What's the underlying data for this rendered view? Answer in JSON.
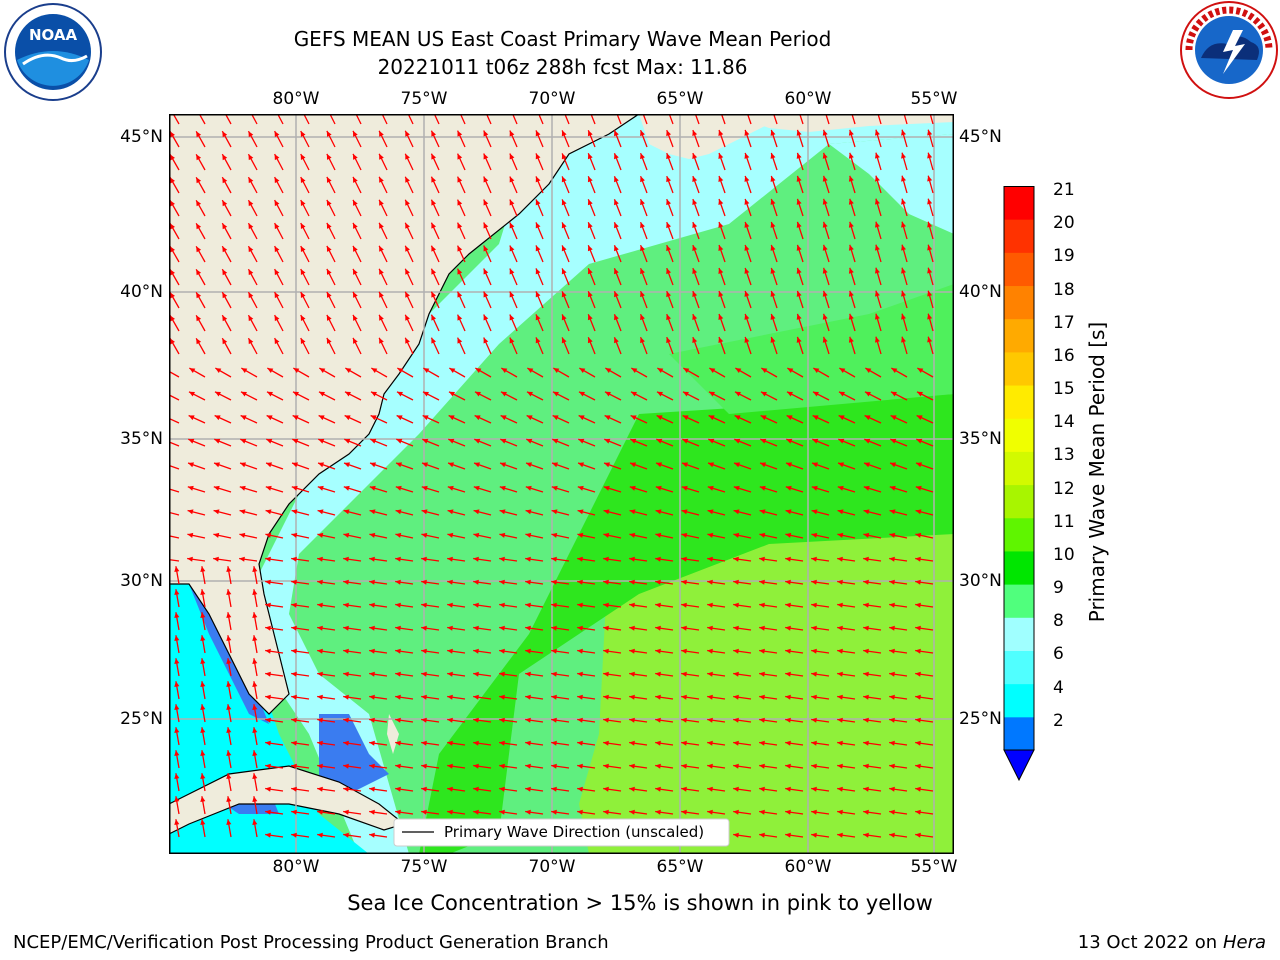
{
  "title_line1": "GEFS MEAN US East Coast Primary Wave Mean Period",
  "title_line2": "20221011 t06z 288h fcst   Max: 11.86",
  "logos": {
    "left": "NOAA",
    "right": "NATIONAL WEATHER SERVICE"
  },
  "map": {
    "lon_labels": [
      "80°W",
      "75°W",
      "70°W",
      "65°W",
      "60°W",
      "55°W"
    ],
    "lat_labels": [
      "45°N",
      "40°N",
      "35°N",
      "30°N",
      "25°N"
    ],
    "legend_label": "Primary Wave Direction (unscaled)",
    "land_color": "#efecdc",
    "arrow_color": "#ff0000"
  },
  "colorbar": {
    "title": "Primary Wave Mean Period [s]",
    "ticks": [
      "21",
      "20",
      "19",
      "18",
      "17",
      "16",
      "15",
      "14",
      "13",
      "12",
      "11",
      "10",
      "9",
      "8",
      "6",
      "4",
      "2"
    ],
    "colors_bottom_to_top": [
      "#0078ff",
      "#00ffff",
      "#50ffff",
      "#a0ffff",
      "#50ff7d",
      "#00e600",
      "#5ff500",
      "#a8f500",
      "#d2fa00",
      "#f0ff00",
      "#ffeb00",
      "#ffc800",
      "#ffaa00",
      "#ff8200",
      "#ff5a00",
      "#ff3200",
      "#ff0000"
    ],
    "under_color": "#0000ff"
  },
  "sub_note": "Sea Ice Concentration > 15% is shown in pink to yellow",
  "footer_left": "NCEP/EMC/Verification Post Processing Product Generation Branch",
  "footer_right_date": "13 Oct 2022 on",
  "footer_right_host": "Hera"
}
